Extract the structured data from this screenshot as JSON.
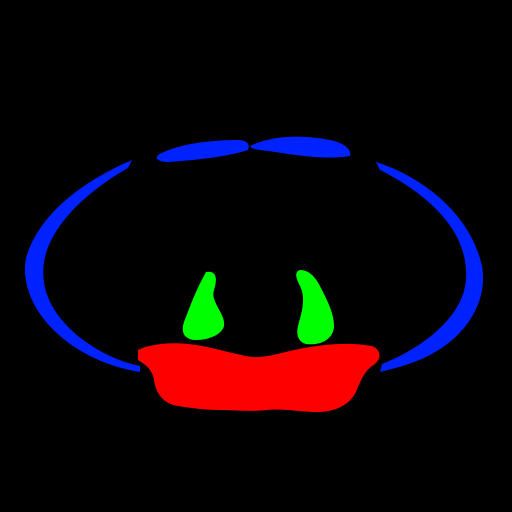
{
  "image": {
    "background": "#000000",
    "regions": [
      {
        "name": "outer-boundary",
        "color": "#0022ff"
      },
      {
        "name": "green-structure",
        "color": "#00ff00"
      },
      {
        "name": "red-structure",
        "color": "#ff0000"
      }
    ]
  }
}
